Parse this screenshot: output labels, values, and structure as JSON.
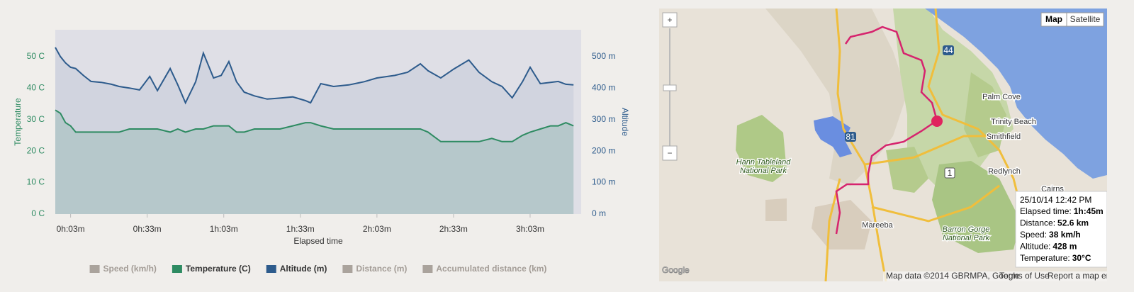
{
  "chart_data": {
    "type": "line",
    "xlabel": "Elapsed time",
    "ylabel": "Temperature",
    "y2label": "Altitude",
    "x": [
      -3,
      -1,
      1,
      3,
      5,
      8,
      11,
      15,
      19,
      22,
      26,
      30,
      34,
      37,
      42,
      45,
      48,
      52,
      55,
      59,
      62,
      65,
      68,
      71,
      75,
      80,
      85,
      90,
      95,
      97,
      101,
      106,
      112,
      118,
      123,
      130,
      135,
      140,
      143,
      148,
      153,
      159,
      163,
      168,
      172,
      176,
      180,
      183,
      187,
      191,
      194,
      197,
      200
    ],
    "xlim": [
      -3,
      203
    ],
    "xticks": [
      {
        "value": 3,
        "label": "0h:03m"
      },
      {
        "value": 33,
        "label": "0h:33m"
      },
      {
        "value": 63,
        "label": "1h:03m"
      },
      {
        "value": 93,
        "label": "1h:33m"
      },
      {
        "value": 123,
        "label": "2h:03m"
      },
      {
        "value": 153,
        "label": "2h:33m"
      },
      {
        "value": 183,
        "label": "3h:03m"
      }
    ],
    "ylim": [
      0,
      58.5
    ],
    "yticks": [
      {
        "value": 0,
        "label": "0 C"
      },
      {
        "value": 10,
        "label": "10 C"
      },
      {
        "value": 20,
        "label": "20 C"
      },
      {
        "value": 30,
        "label": "30 C"
      },
      {
        "value": 40,
        "label": "40 C"
      },
      {
        "value": 50,
        "label": "50 C"
      }
    ],
    "y2lim": [
      0,
      585
    ],
    "y2ticks": [
      {
        "value": 0,
        "label": "0 m"
      },
      {
        "value": 100,
        "label": "100 m"
      },
      {
        "value": 200,
        "label": "200 m"
      },
      {
        "value": 300,
        "label": "300 m"
      },
      {
        "value": 400,
        "label": "400 m"
      },
      {
        "value": 500,
        "label": "500 m"
      }
    ],
    "grid": false,
    "area": true,
    "legend": "bottom",
    "series": [
      {
        "name": "Speed (km/h)",
        "color": "#aaa39c",
        "visible": false,
        "values": null
      },
      {
        "name": "Temperature (C)",
        "color": "#2e8b62",
        "visible": true,
        "values": [
          33,
          32,
          29,
          28,
          26,
          26,
          26,
          26,
          26,
          26,
          27,
          27,
          27,
          27,
          26,
          27,
          26,
          27,
          27,
          28,
          28,
          28,
          26,
          26,
          27,
          27,
          27,
          28,
          29,
          29,
          28,
          27,
          27,
          27,
          27,
          27,
          27,
          27,
          26,
          23,
          23,
          23,
          23,
          24,
          23,
          23,
          25,
          26,
          27,
          28,
          28,
          29,
          28
        ]
      },
      {
        "name": "Altitude (m)",
        "color": "#2d5b8c",
        "visible": true,
        "axis": "y2",
        "values": [
          529,
          500,
          480,
          466,
          462,
          440,
          421,
          418,
          412,
          405,
          400,
          394,
          437,
          392,
          462,
          410,
          353,
          420,
          511,
          432,
          440,
          484,
          420,
          387,
          375,
          365,
          368,
          372,
          360,
          353,
          414,
          405,
          410,
          420,
          432,
          440,
          450,
          477,
          455,
          432,
          460,
          489,
          450,
          420,
          405,
          369,
          420,
          466,
          414,
          418,
          421,
          412,
          410
        ]
      },
      {
        "name": "Distance (m)",
        "color": "#aaa39c",
        "visible": false,
        "values": null
      },
      {
        "name": "Accumulated distance (km)",
        "color": "#aaa39c",
        "visible": false,
        "values": null
      }
    ]
  },
  "map": {
    "controls": {
      "zoom_in": "+",
      "zoom_out": "−",
      "map": "Map",
      "satellite": "Satellite"
    },
    "places": [
      "Palm Cove",
      "Trinity Beach",
      "Smithfield",
      "Redlynch",
      "Cairns",
      "Hann Tableland",
      "National Park",
      "Mareeba",
      "Barron Gorge",
      "National Park"
    ],
    "roads": [
      "44",
      "81",
      "1"
    ],
    "logo": "Google",
    "attribution": "Map data ©2014 GBRMPA, Google",
    "terms": "Terms of Use",
    "report": "Report a map error",
    "tooltip": {
      "datetime": "25/10/14 12:42 PM",
      "rows": [
        {
          "label": "Elapsed time:",
          "value": "1h:45m"
        },
        {
          "label": "Distance:",
          "value": "52.6 km"
        },
        {
          "label": "Speed:",
          "value": "38 km/h"
        },
        {
          "label": "Altitude:",
          "value": "428 m"
        },
        {
          "label": "Temperature:",
          "value": "30°C"
        }
      ]
    }
  }
}
